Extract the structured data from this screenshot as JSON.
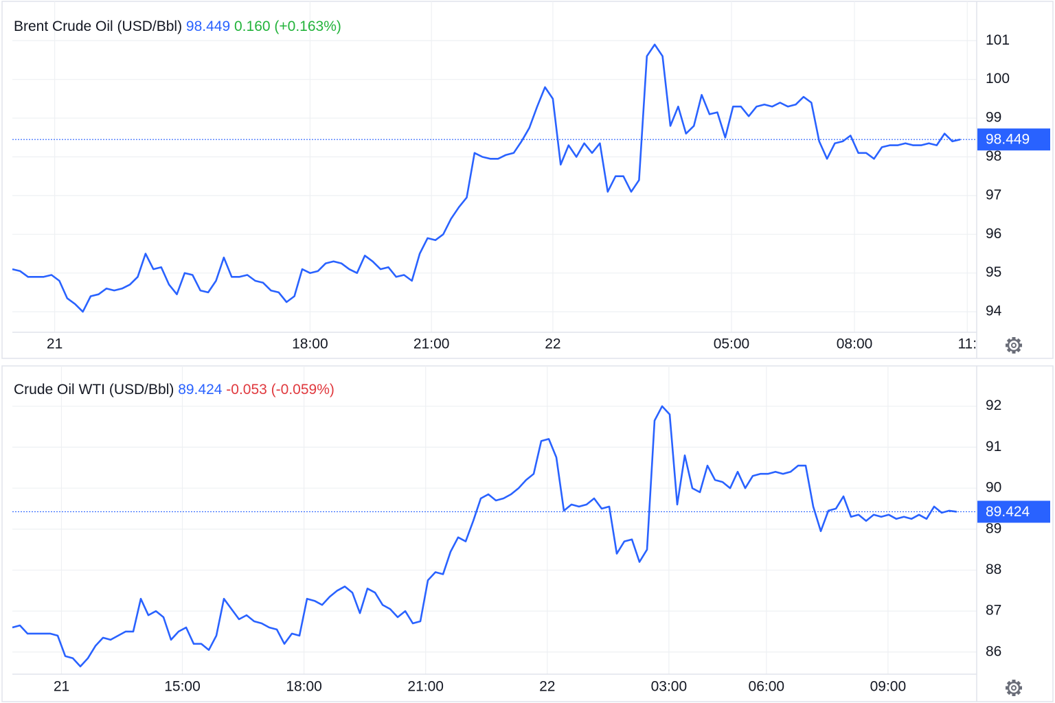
{
  "chart_data": [
    {
      "type": "line",
      "series": [
        {
          "name": "Brent Crude Oil (USD/Bbl)",
          "color": "#2962ff",
          "values": [
            95.1,
            95.05,
            94.9,
            94.9,
            94.9,
            94.95,
            94.8,
            94.35,
            94.2,
            94.0,
            94.4,
            94.45,
            94.6,
            94.55,
            94.6,
            94.7,
            94.9,
            95.5,
            95.1,
            95.15,
            94.7,
            94.45,
            95.0,
            94.95,
            94.55,
            94.5,
            94.8,
            95.4,
            94.9,
            94.9,
            94.95,
            94.8,
            94.75,
            94.55,
            94.5,
            94.25,
            94.4,
            95.1,
            95.0,
            95.05,
            95.25,
            95.3,
            95.25,
            95.1,
            95.0,
            95.45,
            95.3,
            95.1,
            95.15,
            94.9,
            94.95,
            94.8,
            95.5,
            95.9,
            95.85,
            96.0,
            96.4,
            96.7,
            96.95,
            98.1,
            98.0,
            97.95,
            97.95,
            98.05,
            98.1,
            98.4,
            98.75,
            99.3,
            99.8,
            99.5,
            97.8,
            98.3,
            98.0,
            98.35,
            98.1,
            98.35,
            97.1,
            97.5,
            97.5,
            97.1,
            97.4,
            100.6,
            100.9,
            100.6,
            98.8,
            99.3,
            98.6,
            98.8,
            99.6,
            99.1,
            99.15,
            98.5,
            99.3,
            99.3,
            99.05,
            99.3,
            99.35,
            99.3,
            99.4,
            99.3,
            99.35,
            99.55,
            99.4,
            98.4,
            97.95,
            98.35,
            98.4,
            98.55,
            98.1,
            98.1,
            97.95,
            98.25,
            98.3,
            98.3,
            98.35,
            98.3,
            98.3,
            98.35,
            98.3,
            98.6,
            98.4,
            98.45
          ]
        }
      ],
      "last": 98.449,
      "change": {
        "value": 0.16,
        "label": "0.160"
      },
      "change_pct": {
        "value": 0.163,
        "label": "(+0.163%)"
      },
      "change_color": "#22b33a",
      "xlim": [
        0,
        121
      ],
      "xticks": [
        {
          "value": 5.4,
          "label": "21"
        },
        {
          "value": 38,
          "label": "18:00"
        },
        {
          "value": 53.5,
          "label": "21:00"
        },
        {
          "value": 69,
          "label": "22"
        },
        {
          "value": 91.8,
          "label": "05:00"
        },
        {
          "value": 107.5,
          "label": "08:00"
        },
        {
          "value": 121.9,
          "label": "11:"
        }
      ],
      "ylim": [
        93.47,
        101.98
      ],
      "yticks": [
        94,
        95,
        96,
        97,
        98,
        99,
        100,
        101
      ],
      "grid": true
    },
    {
      "type": "line",
      "series": [
        {
          "name": "Crude Oil WTI (USD/Bbl)",
          "color": "#2962ff",
          "values": [
            86.6,
            86.65,
            86.45,
            86.45,
            86.45,
            86.45,
            86.4,
            85.9,
            85.85,
            85.65,
            85.85,
            86.15,
            86.35,
            86.3,
            86.4,
            86.5,
            86.5,
            87.3,
            86.9,
            87.0,
            86.85,
            86.3,
            86.5,
            86.6,
            86.2,
            86.2,
            86.05,
            86.4,
            87.3,
            87.05,
            86.8,
            86.9,
            86.75,
            86.7,
            86.6,
            86.55,
            86.2,
            86.45,
            86.4,
            87.3,
            87.25,
            87.15,
            87.35,
            87.5,
            87.6,
            87.45,
            86.95,
            87.55,
            87.45,
            87.15,
            87.05,
            86.85,
            87.0,
            86.7,
            86.75,
            87.75,
            87.95,
            87.9,
            88.45,
            88.8,
            88.7,
            89.2,
            89.75,
            89.85,
            89.7,
            89.75,
            89.85,
            90.0,
            90.2,
            90.35,
            91.15,
            91.2,
            90.75,
            89.45,
            89.6,
            89.55,
            89.6,
            89.75,
            89.5,
            89.55,
            88.4,
            88.7,
            88.75,
            88.2,
            88.5,
            91.65,
            92.0,
            91.8,
            89.6,
            90.8,
            90.0,
            89.9,
            90.55,
            90.2,
            90.15,
            90.0,
            90.4,
            90.0,
            90.3,
            90.35,
            90.35,
            90.4,
            90.35,
            90.4,
            90.55,
            90.55,
            89.55,
            88.95,
            89.45,
            89.5,
            89.8,
            89.3,
            89.35,
            89.2,
            89.35,
            89.3,
            89.35,
            89.25,
            89.3,
            89.25,
            89.35,
            89.25,
            89.55,
            89.4,
            89.45,
            89.424
          ]
        }
      ],
      "last": 89.424,
      "change": -0.053,
      "change_pct": {
        "value": -0.059,
        "label": "(-0.059%)"
      },
      "change_color": "#e0393e",
      "xlim": [
        0,
        125
      ],
      "xticks": [
        {
          "value": 6.5,
          "label": "21"
        },
        {
          "value": 22.5,
          "label": "15:00"
        },
        {
          "value": 38.6,
          "label": "18:00"
        },
        {
          "value": 54.7,
          "label": "21:00"
        },
        {
          "value": 70.8,
          "label": "22"
        },
        {
          "value": 86.9,
          "label": "03:00"
        },
        {
          "value": 99.8,
          "label": "06:00"
        },
        {
          "value": 115.9,
          "label": "09:00"
        }
      ],
      "ylim": [
        85.46,
        92.95
      ],
      "yticks": [
        86,
        87,
        88,
        89,
        90,
        91,
        92
      ],
      "grid": true
    }
  ]
}
